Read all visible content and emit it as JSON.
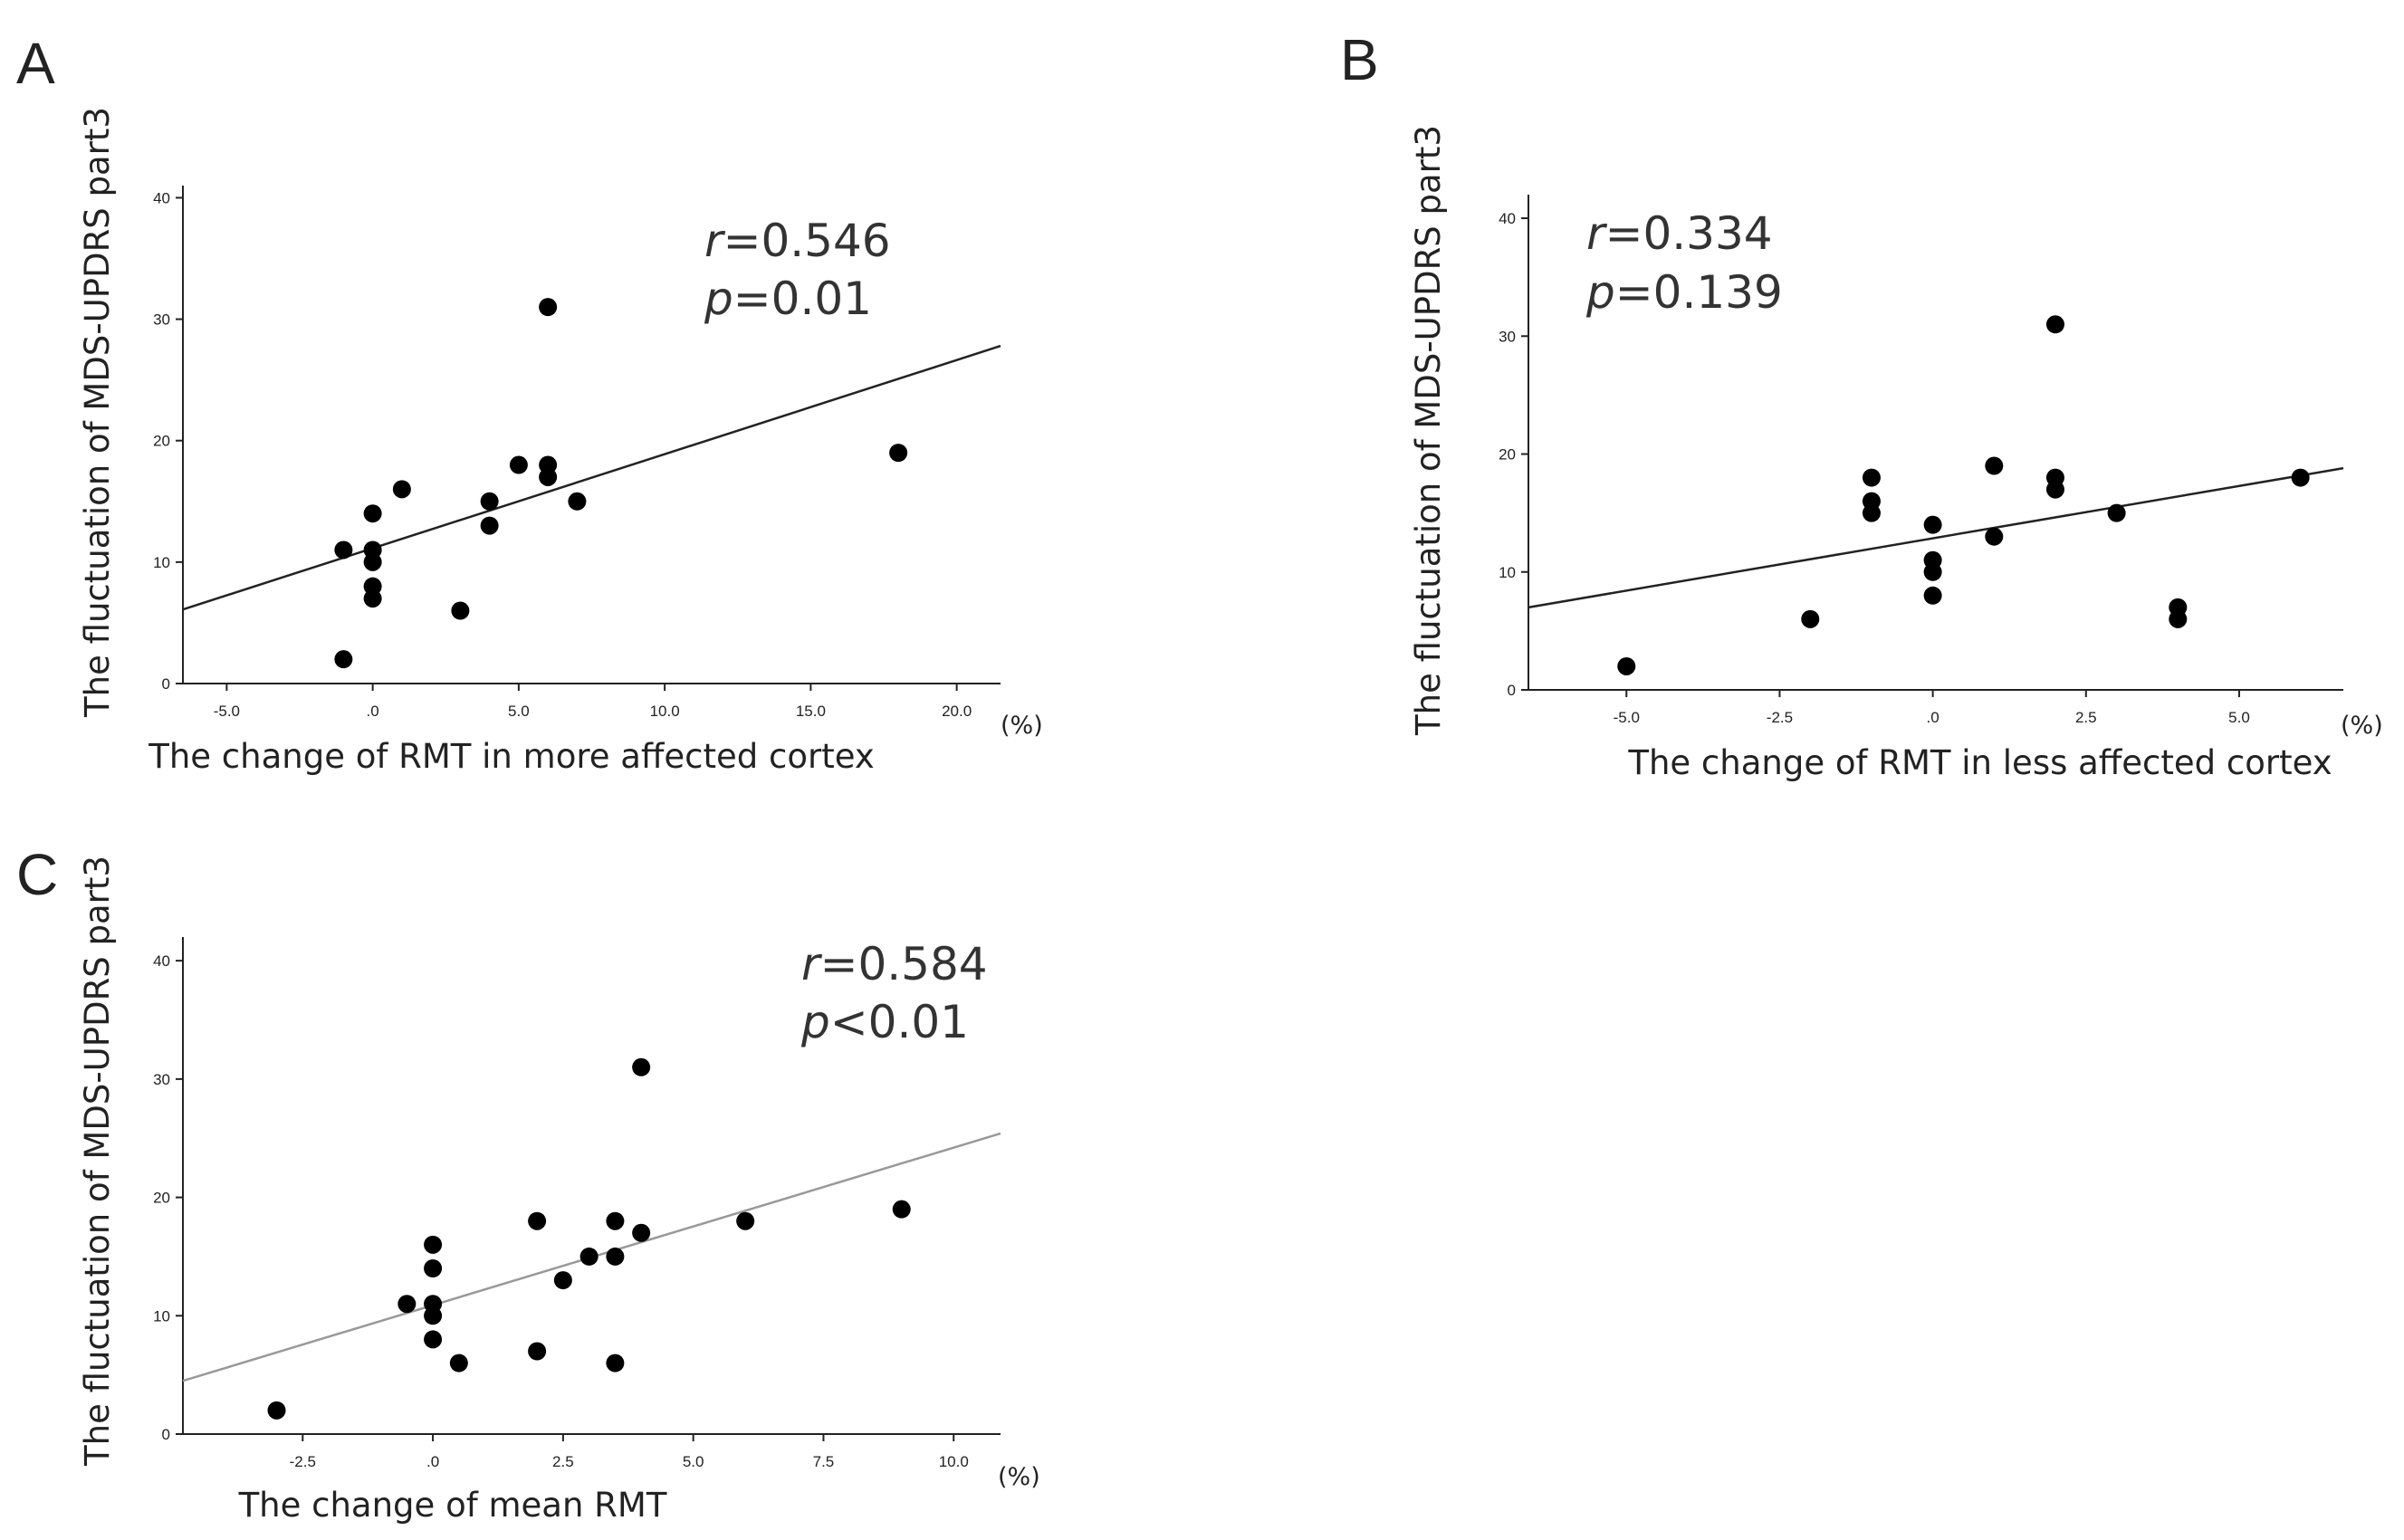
{
  "chart_data": [
    {
      "type": "scatter",
      "panel": "A",
      "xlabel": "The change of RMT in more affected cortex",
      "ylabel": "The  fluctuation of MDS-UPDRS  part3",
      "x_unit": "(%)",
      "xlim": [
        -6.5,
        21.5
      ],
      "ylim": [
        0,
        41
      ],
      "x_ticks": [
        -5,
        0,
        5,
        10,
        15,
        20
      ],
      "x_tick_labels": [
        "-5.0",
        ".0",
        "5.0",
        "10.0",
        "15.0",
        "20.0"
      ],
      "y_ticks": [
        0,
        10,
        20,
        30,
        40
      ],
      "y_tick_labels": [
        "0",
        "10",
        "20",
        "30",
        "40"
      ],
      "stat_r_symbol": "r",
      "stat_r_value": "=0.546",
      "stat_p_symbol": "p",
      "stat_p_value": "=0.01",
      "fit_line": {
        "x": [
          -6.5,
          21.5
        ],
        "y": [
          6.1,
          27.8
        ],
        "color": "#222222"
      },
      "points": [
        {
          "x": -1,
          "y": 2
        },
        {
          "x": -1,
          "y": 11
        },
        {
          "x": 0,
          "y": 7
        },
        {
          "x": 0,
          "y": 8
        },
        {
          "x": 0,
          "y": 10
        },
        {
          "x": 0,
          "y": 11
        },
        {
          "x": 0,
          "y": 14
        },
        {
          "x": 1,
          "y": 16
        },
        {
          "x": 3,
          "y": 6
        },
        {
          "x": 4,
          "y": 13
        },
        {
          "x": 4,
          "y": 15
        },
        {
          "x": 5,
          "y": 18
        },
        {
          "x": 6,
          "y": 17
        },
        {
          "x": 6,
          "y": 18
        },
        {
          "x": 6,
          "y": 31
        },
        {
          "x": 7,
          "y": 15
        },
        {
          "x": 18,
          "y": 19
        }
      ]
    },
    {
      "type": "scatter",
      "panel": "B",
      "xlabel": "The change of RMT in less affected cortex",
      "ylabel": "The  fluctuation of MDS-UPDRS  part3",
      "x_unit": "(%)",
      "xlim": [
        -6.6,
        6.7
      ],
      "ylim": [
        0,
        42
      ],
      "x_ticks": [
        -5,
        -2.5,
        0,
        2.5,
        5
      ],
      "x_tick_labels": [
        "-5.0",
        "-2.5",
        ".0",
        "2.5",
        "5.0"
      ],
      "y_ticks": [
        0,
        10,
        20,
        30,
        40
      ],
      "y_tick_labels": [
        "0",
        "10",
        "20",
        "30",
        "40"
      ],
      "stat_r_symbol": "r",
      "stat_r_value": "=0.334",
      "stat_p_symbol": "p",
      "stat_p_value": "=0.139",
      "fit_line": {
        "x": [
          -6.6,
          6.7
        ],
        "y": [
          7.0,
          18.8
        ],
        "color": "#222222"
      },
      "points": [
        {
          "x": -5,
          "y": 2
        },
        {
          "x": -2,
          "y": 6
        },
        {
          "x": -1,
          "y": 15
        },
        {
          "x": -1,
          "y": 16
        },
        {
          "x": -1,
          "y": 18
        },
        {
          "x": 0,
          "y": 8
        },
        {
          "x": 0,
          "y": 10
        },
        {
          "x": 0,
          "y": 11
        },
        {
          "x": 0,
          "y": 14
        },
        {
          "x": 1,
          "y": 13
        },
        {
          "x": 1,
          "y": 19
        },
        {
          "x": 2,
          "y": 17
        },
        {
          "x": 2,
          "y": 18
        },
        {
          "x": 2,
          "y": 31
        },
        {
          "x": 3,
          "y": 15
        },
        {
          "x": 4,
          "y": 6
        },
        {
          "x": 4,
          "y": 7
        },
        {
          "x": 6,
          "y": 18
        }
      ]
    },
    {
      "type": "scatter",
      "panel": "C",
      "xlabel": "The change of mean RMT",
      "ylabel": "The  fluctuation of MDS-UPDRS  part3",
      "x_unit": "(%)",
      "xlim": [
        -4.8,
        10.9
      ],
      "ylim": [
        0,
        42
      ],
      "x_ticks": [
        -2.5,
        0,
        2.5,
        5,
        7.5,
        10
      ],
      "x_tick_labels": [
        "-2.5",
        ".0",
        "2.5",
        "5.0",
        "7.5",
        "10.0"
      ],
      "y_ticks": [
        0,
        10,
        20,
        30,
        40
      ],
      "y_tick_labels": [
        "0",
        "10",
        "20",
        "30",
        "40"
      ],
      "stat_r_symbol": "r",
      "stat_r_value": "=0.584",
      "stat_p_symbol": "p",
      "stat_p_value": "<0.01",
      "fit_line": {
        "x": [
          -4.8,
          10.9
        ],
        "y": [
          4.5,
          25.4
        ],
        "color": "#999999"
      },
      "points": [
        {
          "x": -3,
          "y": 2
        },
        {
          "x": -0.5,
          "y": 11
        },
        {
          "x": 0,
          "y": 8
        },
        {
          "x": 0,
          "y": 10
        },
        {
          "x": 0,
          "y": 11
        },
        {
          "x": 0,
          "y": 14
        },
        {
          "x": 0,
          "y": 16
        },
        {
          "x": 0.5,
          "y": 6
        },
        {
          "x": 2,
          "y": 7
        },
        {
          "x": 2,
          "y": 18
        },
        {
          "x": 2.5,
          "y": 13
        },
        {
          "x": 3,
          "y": 15
        },
        {
          "x": 3.5,
          "y": 6
        },
        {
          "x": 3.5,
          "y": 15
        },
        {
          "x": 3.5,
          "y": 18
        },
        {
          "x": 4,
          "y": 17
        },
        {
          "x": 4,
          "y": 31
        },
        {
          "x": 6,
          "y": 18
        },
        {
          "x": 9,
          "y": 19
        }
      ]
    }
  ]
}
